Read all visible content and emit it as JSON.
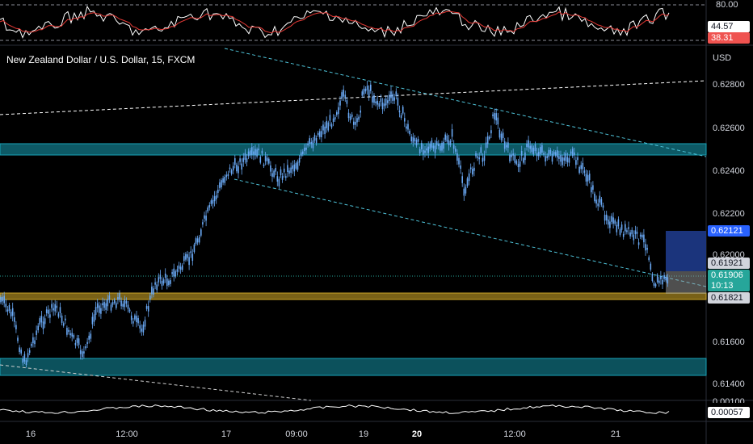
{
  "chart": {
    "title": "New Zealand Dollar / U.S. Dollar, 15, FXCM",
    "currency": "USD"
  },
  "price_axis": [
    "0.62800",
    "0.62600",
    "0.62400",
    "0.62200",
    "0.62000",
    "0.61600",
    "0.61400"
  ],
  "price_tags": {
    "marker_blue": "0.62121",
    "marker_gray": "0.61921",
    "last_price": "0.61906",
    "countdown": "10:13",
    "marker_low": "0.61821"
  },
  "rsi_panel": {
    "upper_level": "80.00",
    "value_white": "44.57",
    "value_red": "38.31"
  },
  "osc_panel": {
    "top_level": "0.00100",
    "value": "0.00057"
  },
  "time_axis": [
    "16",
    "12:00",
    "17",
    "09:00",
    "19",
    "20",
    "12:00",
    "21"
  ],
  "colors": {
    "background": "#000000",
    "candle": "#6aa9f5",
    "zone_teal": "#17a2b8",
    "zone_gold": "#c9a227",
    "tag_blue": "#2962ff",
    "tag_teal": "#26a69a",
    "tag_red": "#ef5350"
  }
}
